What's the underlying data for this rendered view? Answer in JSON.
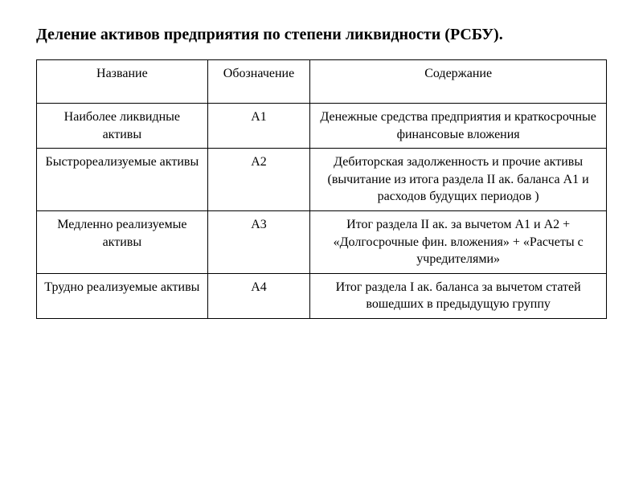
{
  "title": "Деление активов предприятия по степени ликвидности (РСБУ).",
  "table": {
    "columns": [
      "Название",
      "Обозначение",
      "Содержание"
    ],
    "rows": [
      {
        "name": "Наиболее ликвидные активы",
        "code": "А1",
        "content": "Денежные средства предприятия и краткосрочные финансовые вложения"
      },
      {
        "name": "Быстрореализуемые активы",
        "code": "А2",
        "content": "Дебиторская задолженность и прочие активы (вычитание из итога раздела II ак. баланса А1 и расходов будущих периодов )"
      },
      {
        "name": "Медленно реализуемые активы",
        "code": "А3",
        "content": "Итог раздела II ак. за вычетом А1 и А2 + «Долгосрочные фин. вложения» + «Расчеты с учредителями»"
      },
      {
        "name": "Трудно реализуемые активы",
        "code": "А4",
        "content": "Итог раздела I ак. баланса за вычетом статей вошедших в предыдущую группу"
      }
    ]
  },
  "styling": {
    "background_color": "#ffffff",
    "text_color": "#000000",
    "border_color": "#000000",
    "font_family": "Times New Roman",
    "title_fontsize": 20,
    "title_fontweight": "bold",
    "table_fontsize": 16,
    "column_widths_percent": [
      30,
      18,
      52
    ],
    "cell_text_align": "center",
    "header_row_height": 54
  }
}
